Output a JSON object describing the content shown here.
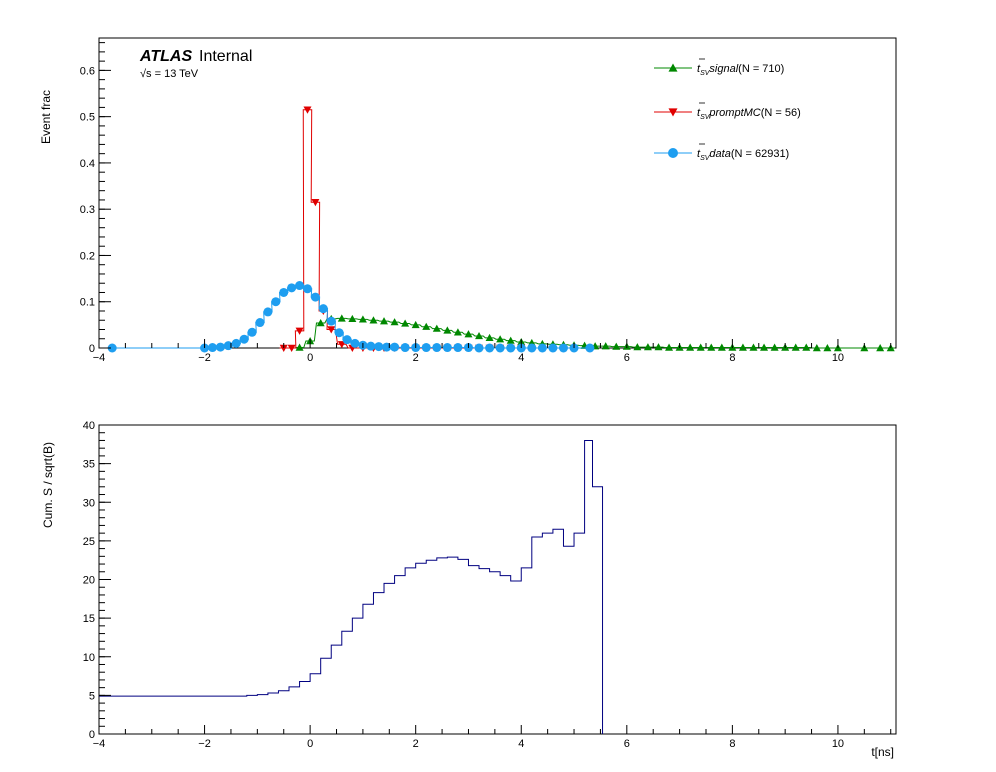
{
  "chart_data": [
    {
      "type": "line",
      "title": "",
      "ylabel": "Event frac",
      "xlabel": "",
      "xlim": [
        -4,
        11.1
      ],
      "ylim": [
        0,
        0.67
      ],
      "x_ticks": [
        -4,
        -2,
        0,
        2,
        4,
        6,
        8,
        10
      ],
      "x_tick_labels": [
        "−4",
        "−2",
        "0",
        "2",
        "4",
        "6",
        "8",
        "10"
      ],
      "y_ticks": [
        0,
        0.1,
        0.2,
        0.3,
        0.4,
        0.5,
        0.6
      ],
      "y_tick_labels": [
        "0",
        "0.1",
        "0.2",
        "0.3",
        "0.4",
        "0.5",
        "0.6"
      ],
      "annotation": {
        "atlas": "ATLAS",
        "internal": "Internal",
        "energy": "√s = 13 TeV"
      },
      "legend_position": "top-right",
      "series": [
        {
          "name": "signal",
          "legend_prefix": "t",
          "legend_sub": "SV",
          "legend_body": "signal",
          "legend_count": "(N = 710)",
          "color": "#008800",
          "marker": "triangle-up",
          "x": [
            -0.2,
            0.0,
            0.2,
            0.4,
            0.6,
            0.8,
            1.0,
            1.2,
            1.4,
            1.6,
            1.8,
            2.0,
            2.2,
            2.4,
            2.6,
            2.8,
            3.0,
            3.2,
            3.4,
            3.6,
            3.8,
            4.0,
            4.2,
            4.4,
            4.6,
            4.8,
            5.0,
            5.2,
            5.4,
            5.6,
            5.8,
            6.0,
            6.2,
            6.4,
            6.6,
            6.8,
            7.0,
            7.2,
            7.4,
            7.6,
            7.8,
            8.0,
            8.2,
            8.4,
            8.6,
            8.8,
            9.0,
            9.2,
            9.4,
            9.6,
            9.8,
            10.0,
            10.5,
            10.8,
            11.0
          ],
          "y": [
            0.001,
            0.015,
            0.054,
            0.063,
            0.064,
            0.063,
            0.062,
            0.06,
            0.058,
            0.056,
            0.053,
            0.05,
            0.046,
            0.042,
            0.038,
            0.034,
            0.03,
            0.026,
            0.022,
            0.019,
            0.016,
            0.013,
            0.011,
            0.009,
            0.008,
            0.007,
            0.006,
            0.005,
            0.004,
            0.004,
            0.003,
            0.003,
            0.002,
            0.002,
            0.002,
            0.001,
            0.001,
            0.001,
            0.001,
            0.001,
            0.001,
            0.001,
            0.001,
            0.001,
            0.001,
            0.001,
            0.001,
            0.001,
            0.001,
            0.0,
            0.0,
            0.0,
            0.0,
            0.0,
            0.0
          ]
        },
        {
          "name": "promptMC",
          "legend_prefix": "t",
          "legend_sub": "SV",
          "legend_body": "promptMC",
          "legend_count": "(N = 56)",
          "color": "#e00000",
          "marker": "triangle-down",
          "x": [
            -0.5,
            -0.35,
            -0.2,
            -0.05,
            0.1,
            0.25,
            0.4,
            0.6,
            0.8,
            1.0,
            1.2,
            1.4,
            1.6,
            1.8,
            2.0,
            2.2,
            2.4,
            2.6,
            2.8,
            3.0,
            3.2,
            3.4,
            3.6,
            3.8,
            4.0
          ],
          "y": [
            0.0,
            0.0,
            0.037,
            0.515,
            0.315,
            0.08,
            0.04,
            0.008,
            0.0,
            0.0,
            0.0,
            0.0,
            0.0,
            0.0,
            0.0,
            0.0,
            0.0,
            0.0,
            0.0,
            0.0,
            0.0,
            0.0,
            0.0,
            0.0,
            0.0
          ]
        },
        {
          "name": "data",
          "legend_prefix": "t",
          "legend_sub": "SV",
          "legend_body": "data",
          "legend_count": "(N = 62931)",
          "color": "#1e9ef0",
          "marker": "circle",
          "x": [
            -3.75,
            -2.0,
            -1.85,
            -1.7,
            -1.55,
            -1.4,
            -1.25,
            -1.1,
            -0.95,
            -0.8,
            -0.65,
            -0.5,
            -0.35,
            -0.2,
            -0.05,
            0.1,
            0.25,
            0.4,
            0.55,
            0.7,
            0.85,
            1.0,
            1.15,
            1.3,
            1.45,
            1.6,
            1.8,
            2.0,
            2.2,
            2.4,
            2.6,
            2.8,
            3.0,
            3.2,
            3.4,
            3.6,
            3.8,
            4.0,
            4.2,
            4.4,
            4.6,
            4.8,
            5.0,
            5.3
          ],
          "y": [
            0.0,
            0.0,
            0.001,
            0.002,
            0.005,
            0.01,
            0.019,
            0.034,
            0.055,
            0.078,
            0.1,
            0.12,
            0.13,
            0.135,
            0.128,
            0.11,
            0.085,
            0.058,
            0.033,
            0.018,
            0.01,
            0.006,
            0.004,
            0.003,
            0.002,
            0.002,
            0.001,
            0.001,
            0.001,
            0.001,
            0.001,
            0.001,
            0.001,
            0.0,
            0.0,
            0.0,
            0.0,
            0.0,
            0.0,
            0.0,
            0.0,
            0.0,
            0.0,
            0.0
          ]
        }
      ]
    },
    {
      "type": "line",
      "title": "",
      "ylabel": "Cum. S / sqrt(B)",
      "xlabel": "t[ns]",
      "xlim": [
        -4,
        11.1
      ],
      "ylim": [
        0,
        40
      ],
      "x_ticks": [
        -4,
        -2,
        0,
        2,
        4,
        6,
        8,
        10
      ],
      "x_tick_labels": [
        "−4",
        "−2",
        "0",
        "2",
        "4",
        "6",
        "8",
        "10"
      ],
      "y_ticks": [
        0,
        5,
        10,
        15,
        20,
        25,
        30,
        35,
        40
      ],
      "y_tick_labels": [
        "0",
        "5",
        "10",
        "15",
        "20",
        "25",
        "30",
        "35",
        "40"
      ],
      "series": [
        {
          "name": "",
          "color": "#000080",
          "x": [
            -4.0,
            -3.8,
            -1.2,
            -1.0,
            -0.8,
            -0.6,
            -0.4,
            -0.2,
            0.0,
            0.2,
            0.4,
            0.6,
            0.8,
            1.0,
            1.2,
            1.4,
            1.6,
            1.8,
            2.0,
            2.2,
            2.4,
            2.6,
            2.8,
            3.0,
            3.2,
            3.4,
            3.6,
            3.8,
            4.0,
            4.2,
            4.4,
            4.6,
            4.8,
            5.0,
            5.2
          ],
          "y": [
            4.9,
            4.9,
            5.0,
            5.1,
            5.3,
            5.6,
            6.1,
            6.8,
            7.8,
            9.8,
            11.5,
            13.3,
            15.0,
            16.8,
            18.3,
            19.5,
            20.5,
            21.5,
            22.1,
            22.5,
            22.8,
            22.9,
            22.6,
            21.8,
            21.4,
            21.0,
            20.5,
            19.8,
            21.5,
            25.5,
            26.0,
            26.5,
            24.3,
            26.0,
            38.0
          ]
        }
      ]
    }
  ]
}
